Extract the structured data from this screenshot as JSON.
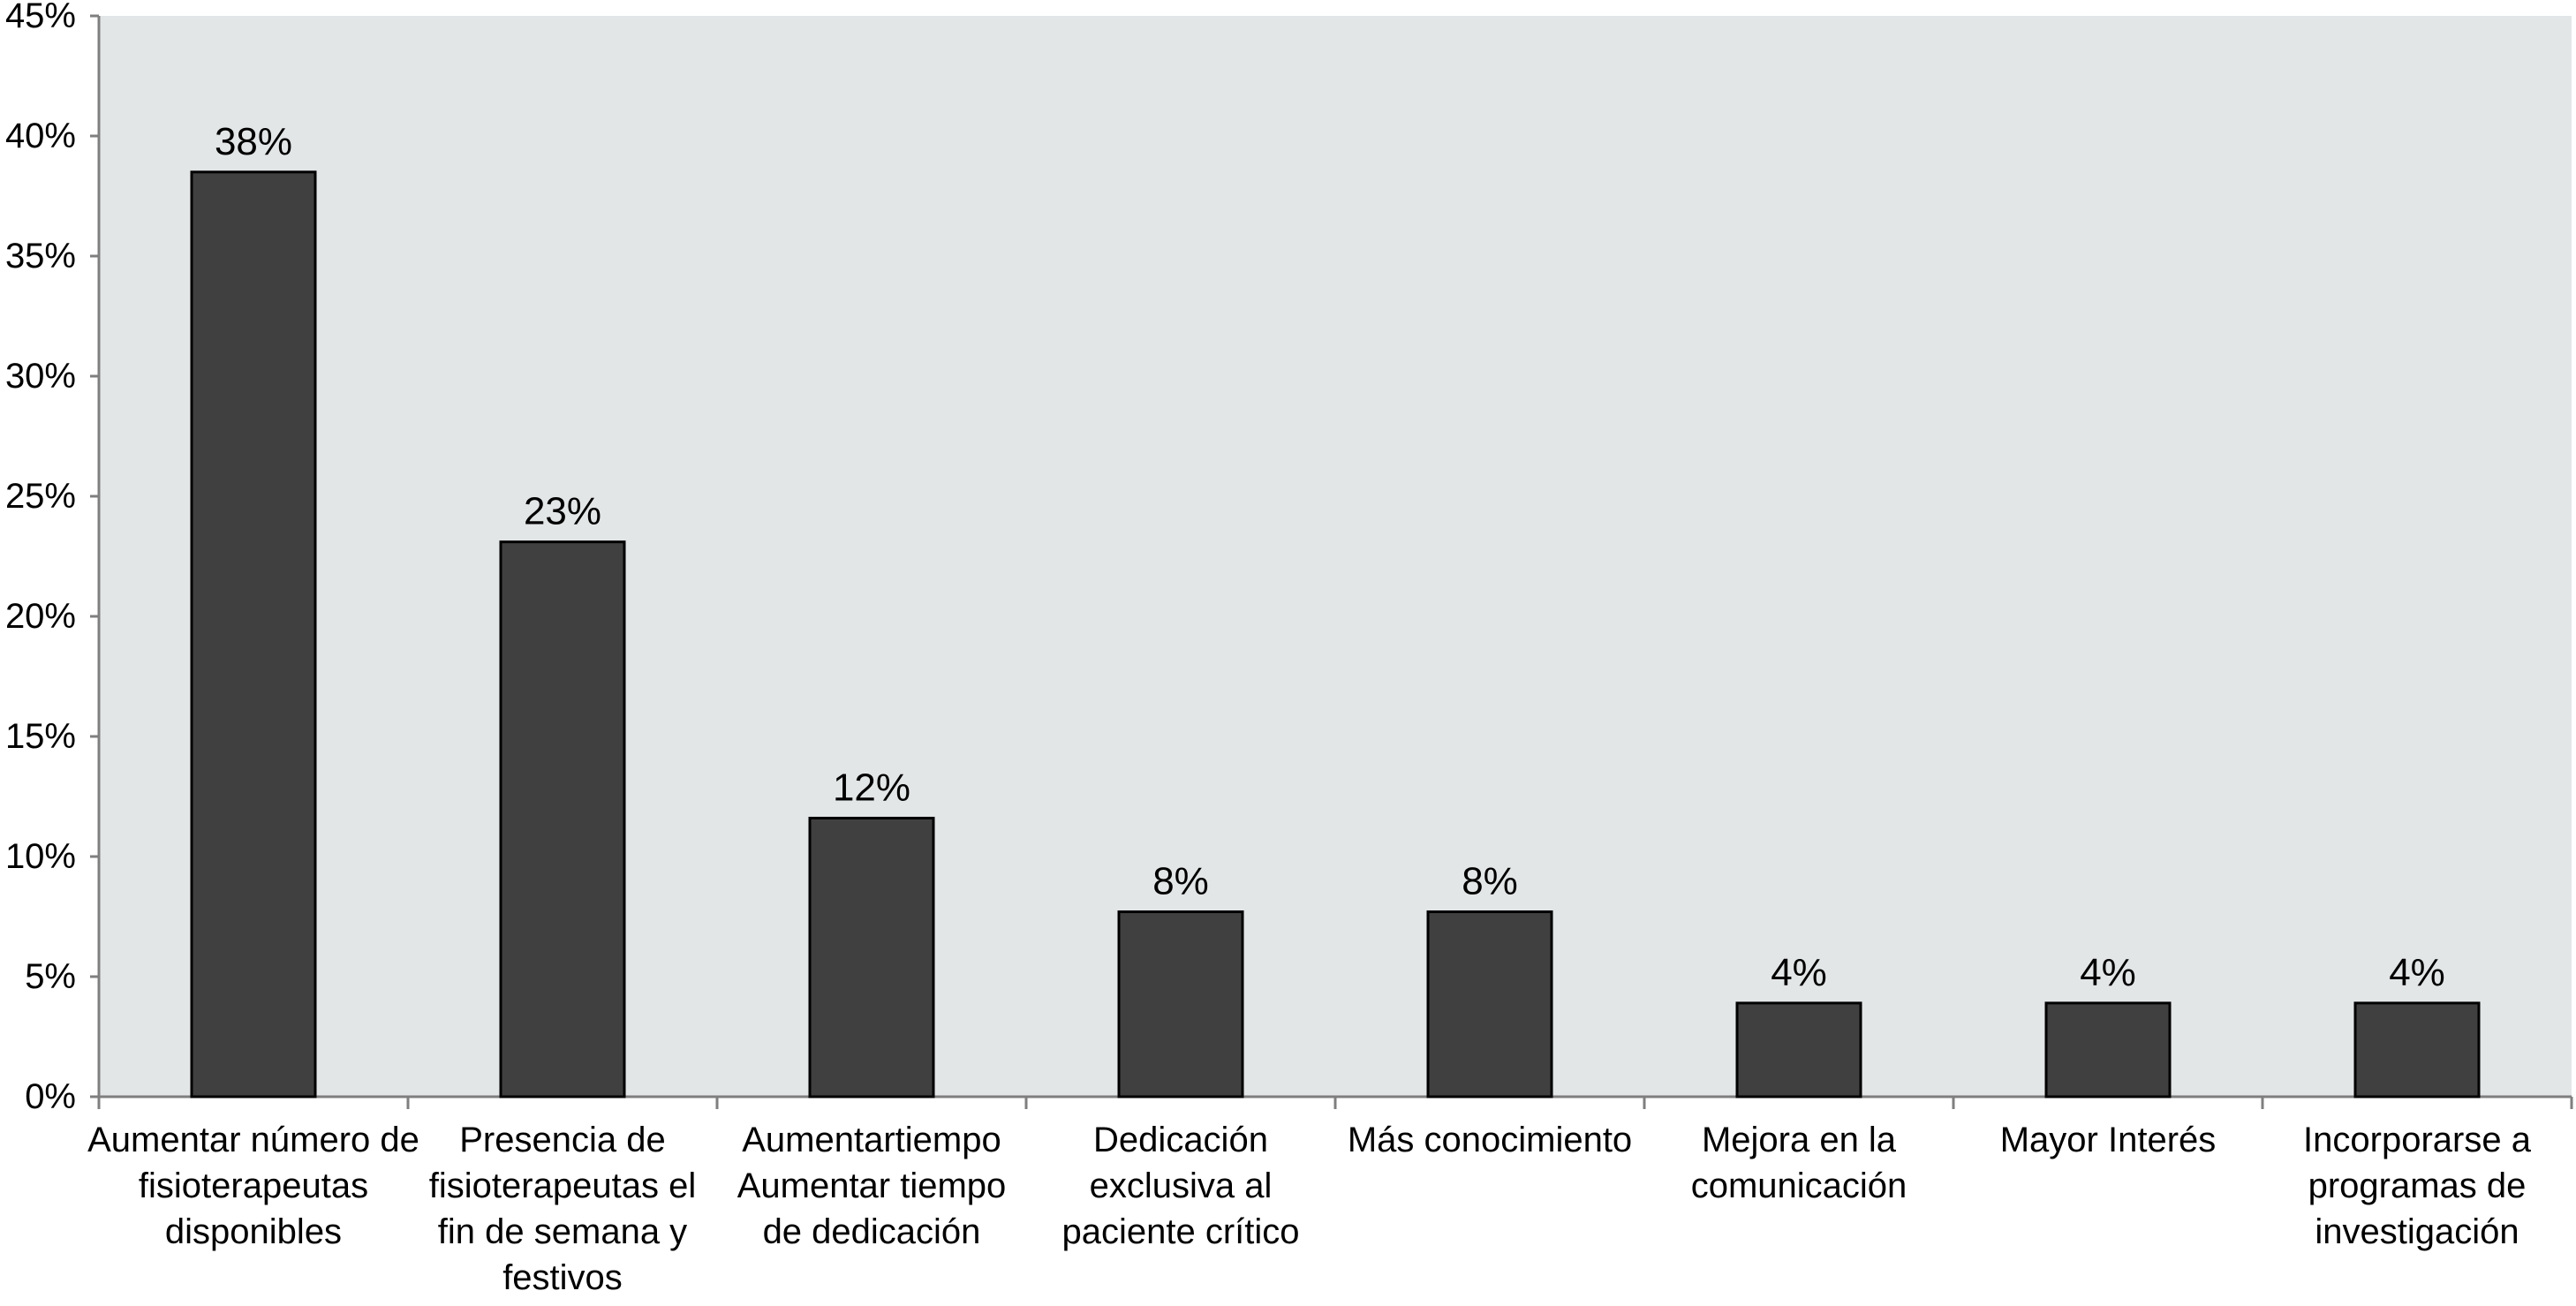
{
  "chart_data": {
    "type": "bar",
    "title": "",
    "xlabel": "",
    "ylabel": "",
    "ylim": [
      0,
      45
    ],
    "y_ticks": [
      {
        "value": 0,
        "label": "0%"
      },
      {
        "value": 5,
        "label": "5%"
      },
      {
        "value": 10,
        "label": "10%"
      },
      {
        "value": 15,
        "label": "15%"
      },
      {
        "value": 20,
        "label": "20%"
      },
      {
        "value": 25,
        "label": "25%"
      },
      {
        "value": 30,
        "label": "30%"
      },
      {
        "value": 35,
        "label": "35%"
      },
      {
        "value": 40,
        "label": "40%"
      },
      {
        "value": 45,
        "label": "45%"
      }
    ],
    "categories": [
      [
        "Aumentar número de",
        "fisioterapeutas",
        "disponibles"
      ],
      [
        "Presencia de",
        "fisioterapeutas el",
        "fin de semana y",
        "festivos"
      ],
      [
        "Aumentartiempo",
        "Aumentar tiempo",
        "de dedicación"
      ],
      [
        "Dedicación",
        "exclusiva al",
        "paciente crítico"
      ],
      [
        "Más conocimiento"
      ],
      [
        "Mejora en la",
        "comunicación"
      ],
      [
        "Mayor Interés"
      ],
      [
        "Incorporarse a",
        "programas de",
        "investigación"
      ]
    ],
    "values": [
      38.5,
      23.1,
      11.6,
      7.7,
      7.7,
      3.9,
      3.9,
      3.9
    ],
    "data_labels": [
      "38%",
      "23%",
      "12%",
      "8%",
      "8%",
      "4%",
      "4%",
      "4%"
    ],
    "grid": false,
    "legend": "none",
    "colors": {
      "bar_fill": "#404040",
      "bar_stroke": "#000000",
      "plot_background": "#e3e6e7",
      "axis": "#7f7f7f"
    }
  }
}
